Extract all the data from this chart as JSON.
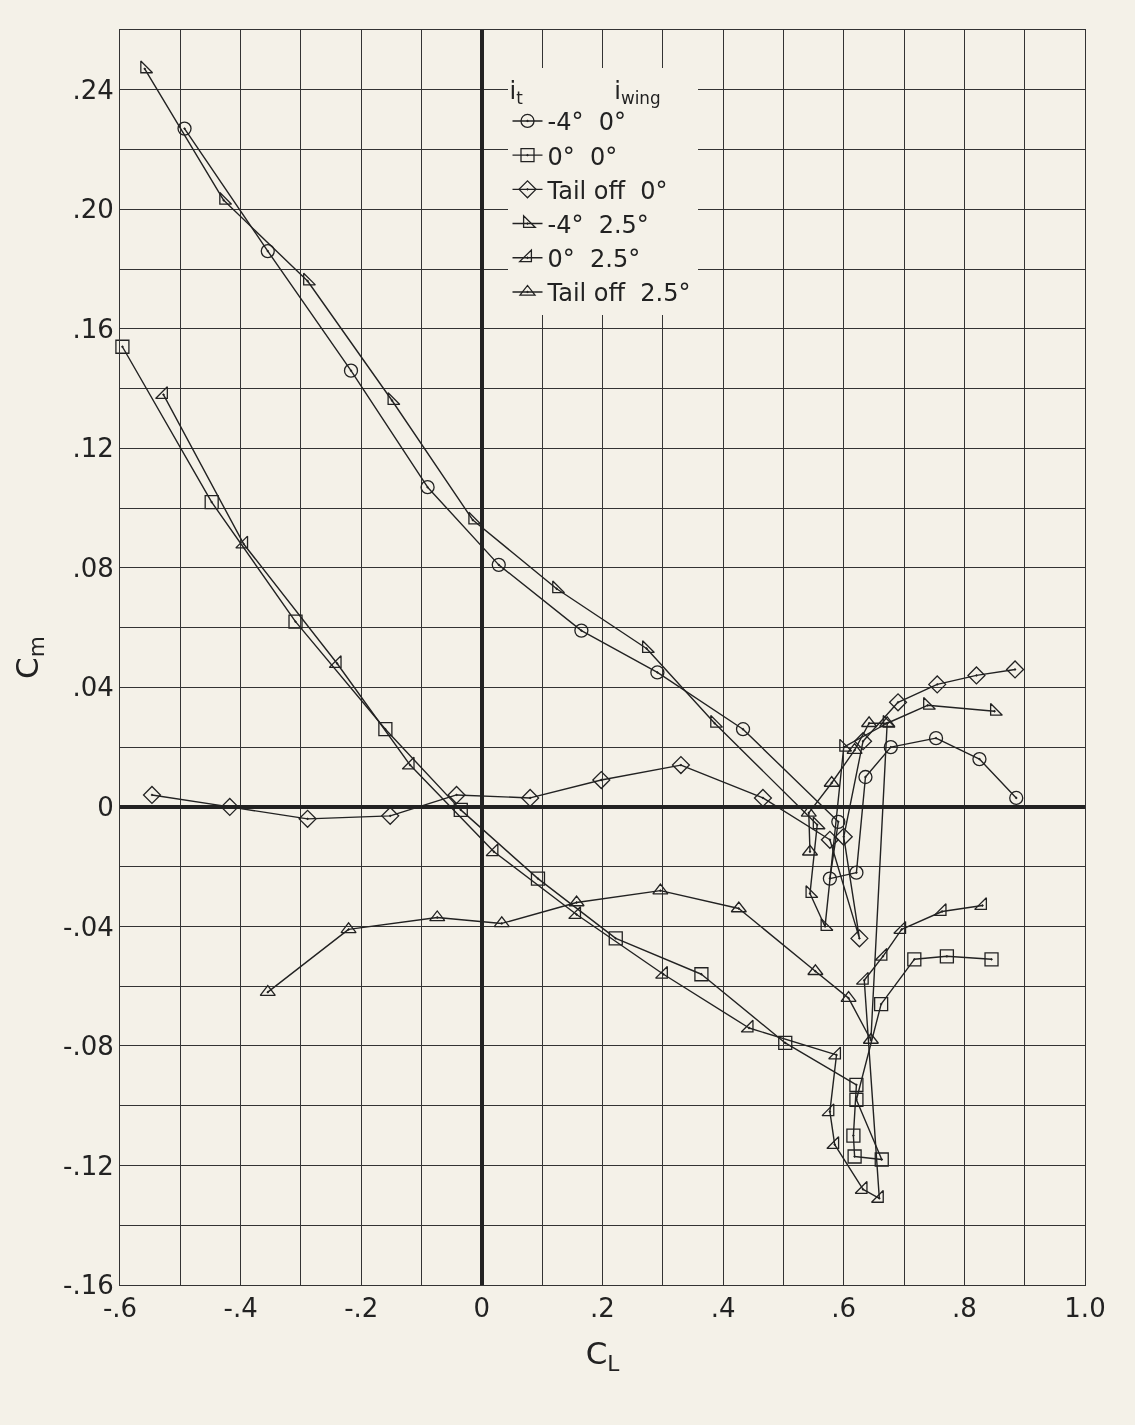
{
  "chart_data": {
    "type": "line",
    "xlabel": "C$_{L}$",
    "ylabel": "C$_{m}$",
    "legend_title": "i$_{t}$            i$_{wing}$",
    "xlim": [
      -0.6,
      1.0
    ],
    "ylim": [
      -0.16,
      0.26
    ],
    "xticks": [
      {
        "value": -0.6,
        "label": "-.6"
      },
      {
        "value": -0.5,
        "label": null
      },
      {
        "value": -0.4,
        "label": "-.4"
      },
      {
        "value": -0.3,
        "label": null
      },
      {
        "value": -0.2,
        "label": "-.2"
      },
      {
        "value": -0.1,
        "label": null
      },
      0,
      {
        "value": 0.1,
        "label": null
      },
      {
        "value": 0.2,
        "label": ".2"
      },
      {
        "value": 0.3,
        "label": null
      },
      {
        "value": 0.4,
        "label": ".4"
      },
      {
        "value": 0.5,
        "label": null
      },
      {
        "value": 0.6,
        "label": ".6"
      },
      {
        "value": 0.7,
        "label": null
      },
      {
        "value": 0.8,
        "label": ".8"
      },
      {
        "value": 0.9,
        "label": null
      },
      {
        "value": 1.0,
        "label": "1.0"
      }
    ],
    "yticks": [
      {
        "value": -0.16,
        "label": "-.16"
      },
      {
        "value": -0.14,
        "label": null
      },
      {
        "value": -0.12,
        "label": "-.12"
      },
      {
        "value": -0.1,
        "label": null
      },
      {
        "value": -0.08,
        "label": "-.08"
      },
      {
        "value": -0.06,
        "label": null
      },
      {
        "value": -0.04,
        "label": "-.04"
      },
      {
        "value": -0.02,
        "label": null
      },
      0,
      {
        "value": 0.02,
        "label": null
      },
      {
        "value": 0.04,
        "label": ".04"
      },
      {
        "value": 0.06,
        "label": null
      },
      {
        "value": 0.08,
        "label": ".08"
      },
      {
        "value": 0.1,
        "label": null
      },
      {
        "value": 0.12,
        "label": ".12"
      },
      {
        "value": 0.14,
        "label": null
      },
      {
        "value": 0.16,
        "label": ".16"
      },
      {
        "value": 0.18,
        "label": null
      },
      {
        "value": 0.2,
        "label": ".20"
      },
      {
        "value": 0.22,
        "label": null
      },
      {
        "value": 0.24,
        "label": ".24"
      },
      {
        "value": 0.26,
        "label": null
      }
    ],
    "grid": true,
    "legend": "top",
    "line_style": "solid",
    "series": [
      {
        "name": "-4°  0°",
        "color": "#222222",
        "marker": "circle",
        "x": [
          -0.493,
          -0.355,
          -0.217,
          -0.09,
          0.028,
          0.165,
          0.291,
          0.433,
          0.591,
          0.577,
          0.621,
          0.636,
          0.678,
          0.753,
          0.825,
          0.886
        ],
        "values": [
          0.227,
          0.186,
          0.146,
          0.107,
          0.081,
          0.059,
          0.045,
          0.026,
          -0.005,
          -0.024,
          -0.022,
          0.01,
          0.02,
          0.023,
          0.016,
          0.003
        ]
      },
      {
        "name": "0°  0°",
        "color": "#222222",
        "marker": "square",
        "x": [
          -0.596,
          -0.448,
          -0.309,
          -0.16,
          -0.035,
          0.093,
          0.222,
          0.364,
          0.503,
          0.621,
          0.616,
          0.618,
          0.663,
          0.621,
          0.662,
          0.717,
          0.771,
          0.845
        ],
        "values": [
          0.154,
          0.102,
          0.062,
          0.026,
          -0.001,
          -0.024,
          -0.044,
          -0.056,
          -0.079,
          -0.093,
          -0.11,
          -0.117,
          -0.118,
          -0.098,
          -0.066,
          -0.051,
          -0.05,
          -0.051
        ]
      },
      {
        "name": "Tail off  0°",
        "color": "#222222",
        "marker": "diamond",
        "x": [
          -0.547,
          -0.418,
          -0.289,
          -0.152,
          -0.042,
          0.08,
          0.198,
          0.33,
          0.466,
          0.577,
          0.626,
          0.6,
          0.632,
          0.69,
          0.755,
          0.82,
          0.884
        ],
        "values": [
          0.004,
          0.0,
          -0.004,
          -0.003,
          0.004,
          0.003,
          0.009,
          0.014,
          0.003,
          -0.011,
          -0.044,
          -0.01,
          0.022,
          0.035,
          0.041,
          0.044,
          0.046
        ]
      },
      {
        "name": "-4°  2.5°",
        "color": "#222222",
        "marker": "triangle",
        "x": [
          -0.559,
          -0.428,
          -0.289,
          -0.149,
          -0.015,
          0.124,
          0.273,
          0.386,
          0.556,
          0.544,
          0.569,
          0.6,
          0.672,
          0.739,
          0.85
        ],
        "values": [
          0.247,
          0.203,
          0.176,
          0.136,
          0.096,
          0.073,
          0.053,
          0.028,
          -0.006,
          -0.029,
          -0.04,
          0.02,
          0.028,
          0.034,
          0.032
        ]
      },
      {
        "name": "0°  2.5°",
        "color": "#222222",
        "marker": "triangle",
        "x": [
          -0.528,
          -0.395,
          -0.24,
          -0.119,
          0.02,
          0.157,
          0.301,
          0.443,
          0.588,
          0.577,
          0.585,
          0.632,
          0.659,
          0.634,
          0.665,
          0.696,
          0.763,
          0.83
        ],
        "values": [
          0.138,
          0.088,
          0.048,
          0.014,
          -0.015,
          -0.036,
          -0.056,
          -0.074,
          -0.083,
          -0.102,
          -0.113,
          -0.128,
          -0.131,
          -0.058,
          -0.05,
          -0.041,
          -0.035,
          -0.033
        ]
      },
      {
        "name": "Tail off  2.5°",
        "color": "#222222",
        "marker": "triangle",
        "x": [
          -0.355,
          -0.221,
          -0.074,
          0.033,
          0.157,
          0.296,
          0.426,
          0.553,
          0.608,
          0.645,
          0.672,
          0.642,
          0.618,
          0.58,
          0.542,
          0.544
        ],
        "values": [
          -0.062,
          -0.041,
          -0.037,
          -0.039,
          -0.032,
          -0.028,
          -0.034,
          -0.055,
          -0.064,
          -0.078,
          0.028,
          0.028,
          0.019,
          0.008,
          -0.002,
          -0.015
        ]
      }
    ]
  }
}
